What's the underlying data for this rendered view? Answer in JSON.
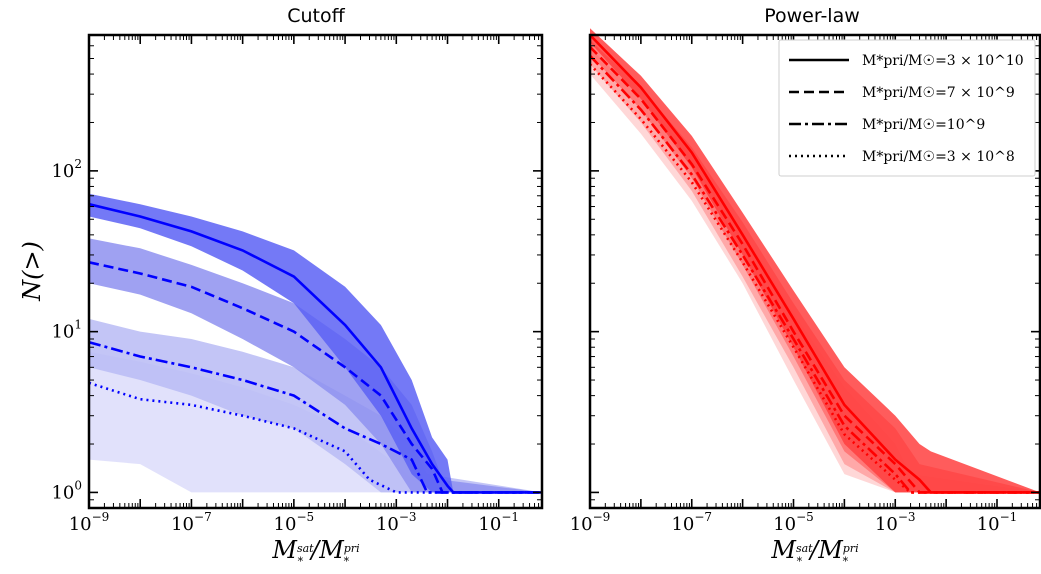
{
  "figure": {
    "ylabel": "N(>)",
    "xlabel_main": "M",
    "xlabel_sup_num": "sat",
    "xlabel_sup_den": "pri",
    "xlabel_sub": "*"
  },
  "legend": {
    "entries": [
      {
        "style": "solid",
        "label": "M*pri/M☉=3 × 10^10"
      },
      {
        "style": "dashed",
        "label": "M*pri/M☉=7 × 10^9"
      },
      {
        "style": "dashdot",
        "label": "M*pri/M☉=10^9"
      },
      {
        "style": "dotted",
        "label": "M*pri/M☉=3 × 10^8"
      }
    ]
  },
  "chart_data": [
    {
      "type": "line",
      "title": "Cutoff",
      "xscale": "log",
      "yscale": "log",
      "xlim": [
        1e-09,
        0.7
      ],
      "ylim": [
        0.8,
        700
      ],
      "xticks": [
        1e-09,
        1e-07,
        1e-05,
        0.001,
        0.1
      ],
      "xtick_labels": [
        "10^-9",
        "10^-7",
        "10^-5",
        "10^-3",
        "10^-1"
      ],
      "yticks": [
        1,
        10,
        100
      ],
      "ytick_labels": [
        "10^0",
        "10^1",
        "10^2"
      ],
      "color": "#0000ff",
      "band_colors": [
        "#5c62f5",
        "#8e91f0",
        "#b9bbf5",
        "#dcdcfa"
      ],
      "series": [
        {
          "name": "M*pri/M☉=3 × 10^10",
          "style": "solid",
          "x": [
            1e-09,
            1e-08,
            1e-07,
            1e-06,
            1e-05,
            0.0001,
            0.0005,
            0.002,
            0.005,
            0.01,
            0.013,
            0.7
          ],
          "y": [
            62,
            52,
            42,
            32,
            22,
            11,
            6,
            2.5,
            1.5,
            1.1,
            1,
            1
          ],
          "band_low": [
            52,
            44,
            34,
            24,
            15,
            6,
            3,
            1.3,
            1,
            1,
            1,
            1
          ],
          "band_high": [
            72,
            62,
            52,
            42,
            32,
            19,
            11,
            5,
            2.2,
            1.6,
            1,
            1
          ]
        },
        {
          "name": "M*pri/M☉=7 × 10^9",
          "style": "dashed",
          "x": [
            1e-09,
            1e-08,
            1e-07,
            1e-06,
            1e-05,
            0.0001,
            0.0005,
            0.002,
            0.005,
            0.008,
            0.7
          ],
          "y": [
            27,
            23,
            19,
            14,
            10,
            6,
            4,
            2,
            1.4,
            1,
            1
          ],
          "band_low": [
            20,
            17,
            13,
            9,
            6,
            3.5,
            2,
            1,
            1,
            1,
            1
          ],
          "band_high": [
            38,
            33,
            26,
            20,
            15,
            9,
            6,
            3.5,
            1.8,
            1.2,
            1
          ]
        },
        {
          "name": "M*pri/M☉=10^9",
          "style": "dashdot",
          "x": [
            1e-09,
            1e-08,
            1e-07,
            1e-06,
            1e-05,
            0.0001,
            0.0005,
            0.002,
            0.004,
            0.7
          ],
          "y": [
            8.6,
            7,
            6,
            5,
            4,
            2.5,
            2,
            1.6,
            1,
            1
          ],
          "band_low": [
            6,
            5,
            4,
            3,
            2.5,
            1.5,
            1,
            1,
            1,
            1
          ],
          "band_high": [
            12,
            10,
            9,
            7.5,
            6,
            4,
            3,
            2,
            1.3,
            1
          ]
        },
        {
          "name": "M*pri/M☉=3 × 10^8",
          "style": "dotted",
          "x": [
            1e-09,
            1e-08,
            1e-07,
            1e-06,
            1e-05,
            0.0001,
            0.0003,
            0.001,
            0.002,
            0.7
          ],
          "y": [
            4.8,
            3.8,
            3.5,
            3,
            2.5,
            1.8,
            1.2,
            1,
            1,
            1
          ],
          "band_low": [
            1.6,
            1.5,
            1,
            1,
            1,
            1,
            1,
            1,
            1,
            1
          ],
          "band_high": [
            7.5,
            6.5,
            5.5,
            4.5,
            3.5,
            2.5,
            2,
            1.5,
            1.2,
            1
          ]
        }
      ]
    },
    {
      "type": "line",
      "title": "Power-law",
      "xscale": "log",
      "yscale": "log",
      "xlim": [
        1e-09,
        0.7
      ],
      "ylim": [
        0.8,
        700
      ],
      "xticks": [
        1e-09,
        1e-07,
        1e-05,
        0.001,
        0.1
      ],
      "xtick_labels": [
        "10^-9",
        "10^-7",
        "10^-5",
        "10^-3",
        "10^-1"
      ],
      "yticks": [
        1,
        10,
        100
      ],
      "color": "#ff0000",
      "band_colors": [
        "#ff4040",
        "#ff7070",
        "#ffa0a0",
        "#ffd0d0"
      ],
      "series": [
        {
          "name": "M*pri/M☉=3 × 10^10",
          "style": "solid",
          "x": [
            1e-09,
            1e-08,
            1e-07,
            1e-06,
            1e-05,
            0.0001,
            0.001,
            0.003,
            0.005,
            0.7
          ],
          "y": [
            700,
            330,
            130,
            40,
            12,
            3.5,
            1.6,
            1.2,
            1,
            1
          ],
          "band_low": [
            630,
            280,
            105,
            30,
            8,
            2,
            1,
            1,
            1,
            1
          ],
          "band_high": [
            770,
            390,
            165,
            55,
            18,
            6,
            3,
            2,
            1.8,
            1
          ]
        },
        {
          "name": "M*pri/M☉=7 × 10^9",
          "style": "dashed",
          "x": [
            1e-09,
            1e-08,
            1e-07,
            1e-06,
            1e-05,
            0.0001,
            0.001,
            0.003,
            0.7
          ],
          "y": [
            590,
            280,
            110,
            35,
            10,
            3,
            1.5,
            1,
            1
          ],
          "band_low": [
            530,
            240,
            90,
            26,
            7,
            1.8,
            1,
            1,
            1
          ],
          "band_high": [
            650,
            330,
            140,
            48,
            15,
            5,
            2.5,
            1.5,
            1
          ]
        },
        {
          "name": "M*pri/M☉=10^9",
          "style": "dashdot",
          "x": [
            1e-09,
            1e-08,
            1e-07,
            1e-06,
            1e-05,
            0.0001,
            0.001,
            0.002,
            0.7
          ],
          "y": [
            520,
            240,
            95,
            30,
            9,
            2.6,
            1.3,
            1,
            1
          ],
          "band_low": [
            460,
            200,
            75,
            22,
            6,
            1.5,
            1,
            1,
            1
          ],
          "band_high": [
            580,
            290,
            125,
            42,
            13,
            4.5,
            2,
            1.3,
            1
          ]
        },
        {
          "name": "M*pri/M☉=3 × 10^8",
          "style": "dotted",
          "x": [
            1e-09,
            1e-08,
            1e-07,
            1e-06,
            1e-05,
            0.0001,
            0.001,
            0.002,
            0.7
          ],
          "y": [
            460,
            210,
            85,
            27,
            8,
            2.3,
            1.2,
            1,
            1
          ],
          "band_low": [
            400,
            170,
            65,
            20,
            5,
            1.3,
            1,
            1,
            1
          ],
          "band_high": [
            520,
            260,
            110,
            38,
            12,
            4,
            1.8,
            1.2,
            1
          ]
        }
      ]
    }
  ]
}
